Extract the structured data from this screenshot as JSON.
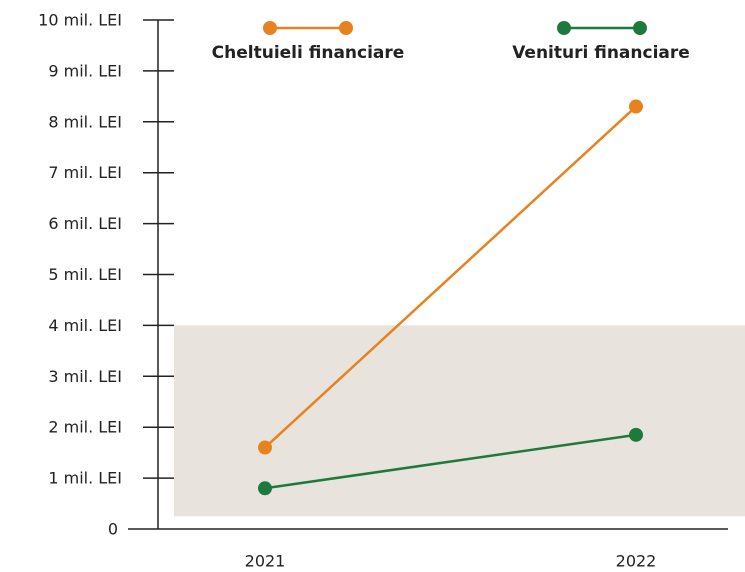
{
  "chart_data": {
    "type": "line",
    "categories": [
      "2021",
      "2022"
    ],
    "series": [
      {
        "name": "Cheltuieli financiare",
        "color": "#e8821e",
        "values": [
          1.6,
          8.3
        ]
      },
      {
        "name": "Venituri financiare",
        "color": "#1e7a3c",
        "values": [
          0.8,
          1.85
        ]
      }
    ],
    "ylim": [
      0,
      10
    ],
    "yticks": [
      0,
      {
        "value": 1,
        "label": "1 mil. LEI"
      },
      {
        "value": 2,
        "label": "2 mil. LEI"
      },
      {
        "value": 3,
        "label": "3 mil. LEI"
      },
      {
        "value": 4,
        "label": "4 mil. LEI"
      },
      {
        "value": 5,
        "label": "5 mil. LEI"
      },
      {
        "value": 6,
        "label": "6 mil. LEI"
      },
      {
        "value": 7,
        "label": "7 mil. LEI"
      },
      {
        "value": 8,
        "label": "8 mil. LEI"
      },
      {
        "value": 9,
        "label": "9 mil. LEI"
      },
      {
        "value": 10,
        "label": "10 mil. LEI"
      }
    ],
    "shaded_range": [
      0.25,
      4
    ],
    "shaded_color": "#e8e3dd",
    "legend": "top"
  }
}
